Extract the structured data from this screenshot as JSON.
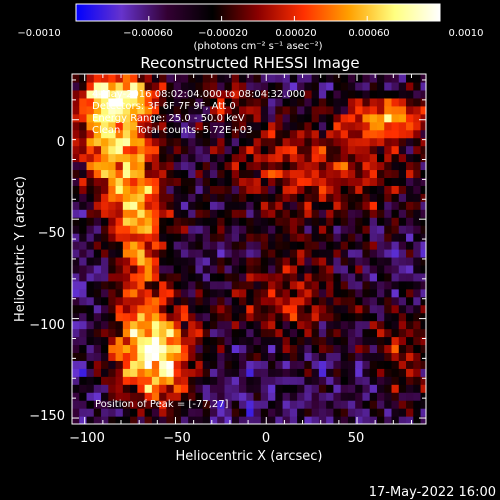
{
  "chart_data": {
    "type": "heatmap",
    "title": "Reconstructed RHESSI Image",
    "xlabel": "Heliocentric X (arcsec)",
    "ylabel": "Heliocentric Y (arcsec)",
    "xlim": [
      -107,
      88
    ],
    "ylim": [
      -153,
      23
    ],
    "x_ticks": [
      -100,
      -50,
      0,
      50
    ],
    "y_ticks": [
      0,
      -50,
      -100,
      -150
    ],
    "x_tick_labels": [
      "−100",
      "−50",
      "0",
      "50"
    ],
    "y_tick_labels": [
      "0",
      "−50",
      "−100",
      "−150"
    ],
    "colorbar": {
      "range": [
        -0.001,
        0.001
      ],
      "tick_labels": [
        "−0.0010",
        "−0.00060",
        "−0.00020",
        "0.00020",
        "0.00060",
        "0.0010"
      ],
      "tick_values": [
        -0.001,
        -0.0006,
        -0.0002,
        0.0002,
        0.0006,
        0.001
      ],
      "unit_label": "(photons cm⁻² s⁻¹ asec⁻²)",
      "colors": [
        "#0000ff",
        "#6633cc",
        "#330033",
        "#000000",
        "#8b0000",
        "#ff3000",
        "#ffa000",
        "#ffff80",
        "#ffffff"
      ]
    },
    "peak": [
      -77,
      27
    ],
    "sources": [
      {
        "x": -62,
        "y": -118,
        "sx": 16,
        "sy": 18,
        "amp": 1.0
      },
      {
        "x": -70,
        "y": -50,
        "sx": 11,
        "sy": 32,
        "amp": 0.72
      },
      {
        "x": -88,
        "y": -8,
        "sx": 13,
        "sy": 22,
        "amp": 0.72
      },
      {
        "x": -80,
        "y": 12,
        "sx": 16,
        "sy": 8,
        "amp": 0.65
      },
      {
        "x": 68,
        "y": 1,
        "sx": 15,
        "sy": 8,
        "amp": 0.6
      },
      {
        "x": 28,
        "y": -25,
        "sx": 42,
        "sy": 22,
        "amp": 0.45
      },
      {
        "x": 12,
        "y": -90,
        "sx": 22,
        "sy": 18,
        "amp": 0.42
      },
      {
        "x": 75,
        "y": -118,
        "sx": 14,
        "sy": 18,
        "amp": 0.38
      },
      {
        "x": -20,
        "y": 12,
        "sx": 14,
        "sy": 8,
        "amp": 0.32
      }
    ],
    "annotations": [
      "4-May-2016 08:02:04.000 to 08:04:32.000",
      "Detectors: 3F 6F 7F 9F, Att 0",
      "Energy Range: 25.0 - 50.0 keV",
      "Clean     Total counts: 5.72E+03"
    ],
    "peak_label": "Position of Peak = [-77,27]"
  },
  "footer": {
    "timestamp": "17-May-2022 16:00"
  }
}
